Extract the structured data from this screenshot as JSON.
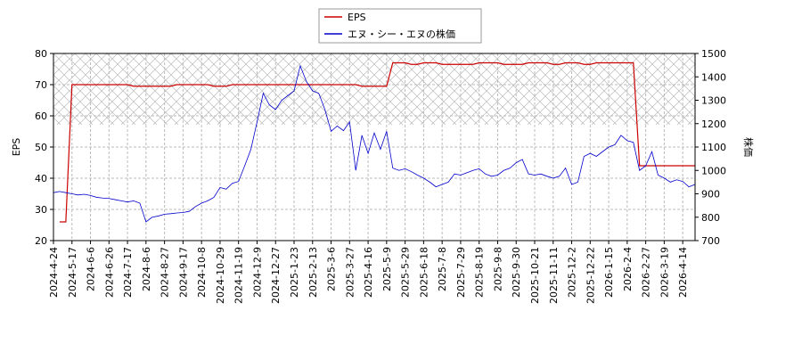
{
  "chart_data": {
    "type": "line",
    "legend": "upper center",
    "grid": true,
    "ylabel": "EPS",
    "y2label": "株価",
    "ylim": [
      20,
      80
    ],
    "yticks": [
      20,
      30,
      40,
      50,
      60,
      70,
      80
    ],
    "y2lim": [
      700,
      1500
    ],
    "y2ticks": [
      700,
      800,
      900,
      1000,
      1100,
      1200,
      1300,
      1400,
      1500
    ],
    "categories": [
      "2024-4-24",
      null,
      null,
      "2024-5-17",
      null,
      null,
      "2024-6-6",
      null,
      null,
      "2024-6-26",
      null,
      null,
      "2024-7-17",
      null,
      null,
      "2024-8-6",
      null,
      null,
      "2024-8-27",
      null,
      null,
      "2024-9-17",
      null,
      null,
      "2024-10-8",
      null,
      null,
      "2024-10-29",
      null,
      null,
      "2024-11-19",
      null,
      null,
      "2024-12-9",
      null,
      null,
      "2024-12-27",
      null,
      null,
      "2025-1-23",
      null,
      null,
      "2025-2-13",
      null,
      null,
      "2025-3-6",
      null,
      null,
      "2025-3-27",
      null,
      null,
      "2025-4-16",
      null,
      null,
      "2025-5-9",
      null,
      null,
      "2025-5-29",
      null,
      null,
      "2025-6-18",
      null,
      null,
      "2025-7-8",
      null,
      null,
      "2025-7-29",
      null,
      null,
      "2025-8-19",
      null,
      null,
      "2025-9-8",
      null,
      null,
      "2025-9-30",
      null,
      null,
      "2025-10-21",
      null,
      null,
      "2025-11-11",
      null,
      null,
      "2025-12-2",
      null,
      null,
      "2025-12-22",
      null,
      null,
      "2026-1-15",
      null,
      null,
      "2026-2-4",
      null,
      null,
      "2026-2-27",
      null,
      null,
      "2026-3-19",
      null,
      null,
      "2026-4-14",
      null,
      null
    ],
    "series": [
      {
        "name": "EPS",
        "color": "#cc0000",
        "axis": "y",
        "values": [
          null,
          26,
          26,
          70,
          70,
          70,
          70,
          70,
          70,
          70,
          70,
          70,
          70,
          69.5,
          69.5,
          69.5,
          69.5,
          69.5,
          69.5,
          69.5,
          70,
          70,
          70,
          70,
          70,
          70,
          69.5,
          69.5,
          69.5,
          70,
          70,
          70,
          70,
          70,
          70,
          70,
          70,
          70,
          70,
          70,
          70,
          70,
          70,
          70,
          70,
          70,
          70,
          70,
          70,
          70,
          69.5,
          69.5,
          69.5,
          69.5,
          69.5,
          77,
          77,
          77,
          76.5,
          76.5,
          77,
          77,
          77,
          76.5,
          76.5,
          76.5,
          76.5,
          76.5,
          76.5,
          77,
          77,
          77,
          77,
          76.5,
          76.5,
          76.5,
          76.5,
          77,
          77,
          77,
          77,
          76.5,
          76.5,
          77,
          77,
          77,
          76.5,
          76.5,
          77,
          77,
          77,
          77,
          77,
          77,
          77,
          44,
          44,
          44,
          44,
          44,
          44,
          44,
          44,
          44,
          44
        ]
      },
      {
        "name": "エヌ・シー・エヌの株価",
        "color": "#0000cc",
        "axis": "y2",
        "values": [
          905,
          910,
          905,
          900,
          895,
          898,
          893,
          885,
          882,
          880,
          875,
          870,
          865,
          870,
          860,
          780,
          800,
          805,
          813,
          815,
          818,
          820,
          825,
          845,
          860,
          870,
          885,
          927,
          920,
          945,
          953,
          1020,
          1090,
          1207,
          1330,
          1280,
          1260,
          1300,
          1320,
          1340,
          1447,
          1380,
          1340,
          1330,
          1260,
          1167,
          1190,
          1170,
          1207,
          1000,
          1150,
          1073,
          1160,
          1090,
          1167,
          1010,
          1000,
          1007,
          995,
          980,
          967,
          950,
          930,
          940,
          950,
          985,
          980,
          990,
          1000,
          1007,
          985,
          975,
          980,
          1000,
          1010,
          1033,
          1047,
          985,
          980,
          985,
          975,
          967,
          975,
          1010,
          940,
          950,
          1060,
          1073,
          1060,
          1080,
          1100,
          1110,
          1150,
          1127,
          1120,
          1000,
          1020,
          1080,
          980,
          967,
          950,
          960,
          953,
          930,
          940
        ]
      }
    ]
  }
}
